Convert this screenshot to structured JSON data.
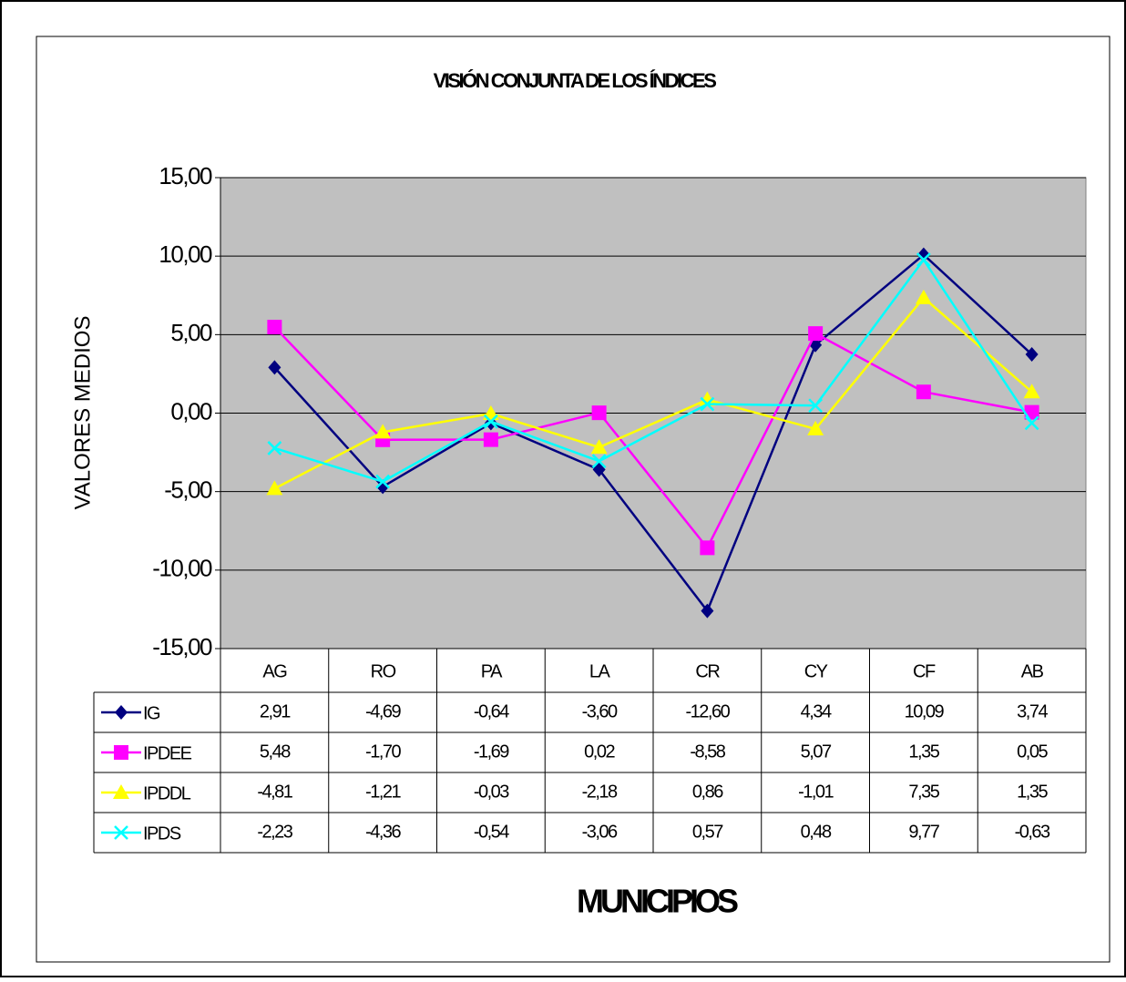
{
  "chart_data": {
    "type": "line",
    "title": "VISIÓN CONJUNTA DE LOS ÍNDICES",
    "y_label": "VALORES MEDIOS",
    "x_label": "MUNICIPIOS",
    "categories": [
      "AG",
      "RO",
      "PA",
      "LA",
      "CR",
      "CY",
      "CF",
      "AB"
    ],
    "series": [
      {
        "name": "IG",
        "color": "#000080",
        "marker": "diamond",
        "values": [
          2.91,
          -4.69,
          -0.64,
          -3.6,
          -12.6,
          4.34,
          10.09,
          3.74
        ],
        "value_labels": [
          "2,91",
          "-4,69",
          "-0,64",
          "-3,60",
          "-12,60",
          "4,34",
          "10,09",
          "3,74"
        ]
      },
      {
        "name": "IPDEE",
        "color": "#ff00ff",
        "marker": "square",
        "values": [
          5.48,
          -1.7,
          -1.69,
          0.02,
          -8.58,
          5.07,
          1.35,
          0.05
        ],
        "value_labels": [
          "5,48",
          "-1,70",
          "-1,69",
          "0,02",
          "-8,58",
          "5,07",
          "1,35",
          "0,05"
        ]
      },
      {
        "name": "IPDDL",
        "color": "#ffff00",
        "marker": "triangle",
        "values": [
          -4.81,
          -1.21,
          -0.03,
          -2.18,
          0.86,
          -1.01,
          7.35,
          1.35
        ],
        "value_labels": [
          "-4,81",
          "-1,21",
          "-0,03",
          "-2,18",
          "0,86",
          "-1,01",
          "7,35",
          "1,35"
        ]
      },
      {
        "name": "IPDS",
        "color": "#00ffff",
        "marker": "x",
        "values": [
          -2.23,
          -4.36,
          -0.54,
          -3.06,
          0.57,
          0.48,
          9.77,
          -0.63
        ],
        "value_labels": [
          "-2,23",
          "-4,36",
          "-0,54",
          "-3,06",
          "0,57",
          "0,48",
          "9,77",
          "-0,63"
        ]
      }
    ],
    "ylim": [
      -15,
      15
    ],
    "yticks": [
      {
        "value": -15,
        "label": "-15,00"
      },
      {
        "value": -10,
        "label": "-10,00"
      },
      {
        "value": -5,
        "label": "-5,00"
      },
      {
        "value": 0,
        "label": "0,00"
      },
      {
        "value": 5,
        "label": "5,00"
      },
      {
        "value": 10,
        "label": "10,00"
      },
      {
        "value": 15,
        "label": "15,00"
      }
    ],
    "grid": true,
    "plot_background": "#c0c0c0"
  }
}
